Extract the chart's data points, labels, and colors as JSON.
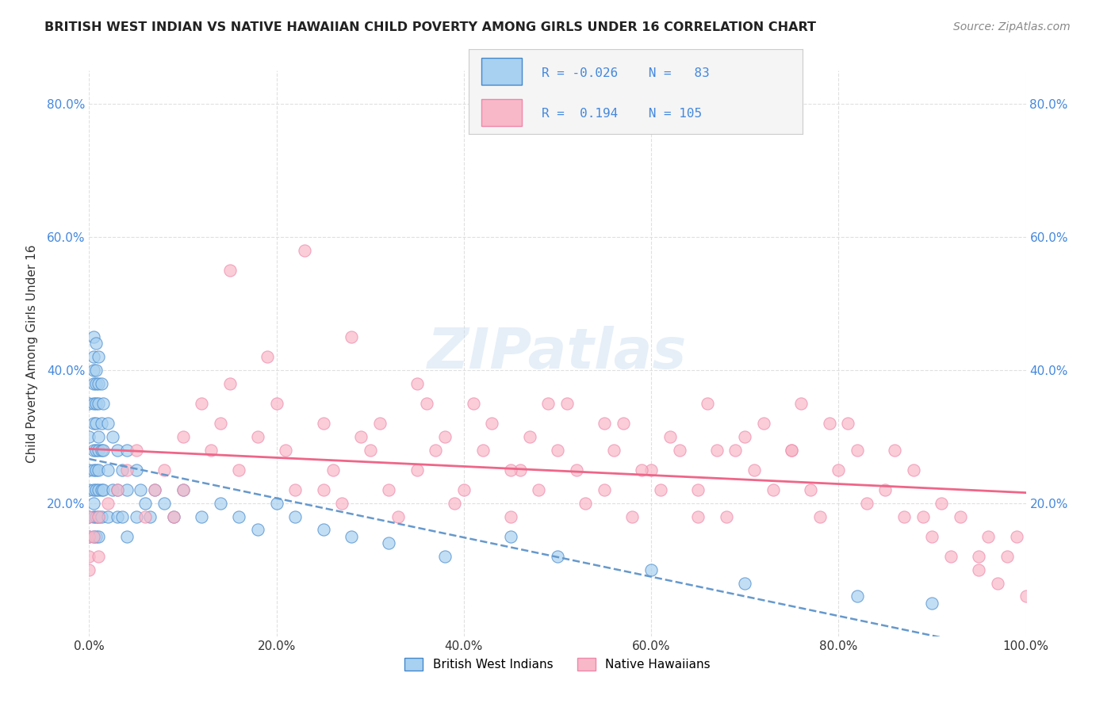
{
  "title": "BRITISH WEST INDIAN VS NATIVE HAWAIIAN CHILD POVERTY AMONG GIRLS UNDER 16 CORRELATION CHART",
  "source": "Source: ZipAtlas.com",
  "ylabel": "Child Poverty Among Girls Under 16",
  "xlabel": "",
  "xlim": [
    0.0,
    1.0
  ],
  "ylim": [
    0.0,
    0.85
  ],
  "x_tick_labels": [
    "0.0%",
    "20.0%",
    "40.0%",
    "60.0%",
    "80.0%",
    "100.0%"
  ],
  "x_tick_vals": [
    0.0,
    0.2,
    0.4,
    0.6,
    0.8,
    1.0
  ],
  "y_tick_labels": [
    "20.0%",
    "40.0%",
    "60.0%",
    "80.0%"
  ],
  "y_tick_vals": [
    0.2,
    0.4,
    0.6,
    0.8
  ],
  "legend_r1": "R = -0.026",
  "legend_n1": "N =  83",
  "legend_r2": "R =  0.194",
  "legend_n2": "N = 105",
  "color_blue": "#a8d0f0",
  "color_pink": "#f8b8c8",
  "color_blue_dark": "#4488cc",
  "color_pink_dark": "#ee88aa",
  "trend_blue": "#6699cc",
  "trend_pink": "#ee6688",
  "background": "#ffffff",
  "grid_color": "#dddddd",
  "watermark": "ZIPatlas",
  "british_x": [
    0.0,
    0.0,
    0.0,
    0.0,
    0.0,
    0.0,
    0.005,
    0.005,
    0.005,
    0.005,
    0.005,
    0.005,
    0.005,
    0.005,
    0.005,
    0.005,
    0.005,
    0.005,
    0.007,
    0.007,
    0.007,
    0.007,
    0.007,
    0.007,
    0.007,
    0.007,
    0.007,
    0.007,
    0.01,
    0.01,
    0.01,
    0.01,
    0.01,
    0.01,
    0.01,
    0.01,
    0.01,
    0.013,
    0.013,
    0.013,
    0.013,
    0.013,
    0.015,
    0.015,
    0.015,
    0.02,
    0.02,
    0.02,
    0.025,
    0.025,
    0.03,
    0.03,
    0.03,
    0.035,
    0.035,
    0.04,
    0.04,
    0.04,
    0.05,
    0.05,
    0.055,
    0.06,
    0.065,
    0.07,
    0.08,
    0.09,
    0.1,
    0.12,
    0.14,
    0.16,
    0.18,
    0.2,
    0.22,
    0.25,
    0.28,
    0.32,
    0.38,
    0.45,
    0.5,
    0.6,
    0.7,
    0.82,
    0.9
  ],
  "british_y": [
    0.35,
    0.3,
    0.25,
    0.22,
    0.18,
    0.15,
    0.45,
    0.42,
    0.4,
    0.38,
    0.35,
    0.32,
    0.28,
    0.25,
    0.22,
    0.2,
    0.18,
    0.15,
    0.44,
    0.4,
    0.38,
    0.35,
    0.32,
    0.28,
    0.25,
    0.22,
    0.18,
    0.15,
    0.42,
    0.38,
    0.35,
    0.3,
    0.28,
    0.25,
    0.22,
    0.18,
    0.15,
    0.38,
    0.32,
    0.28,
    0.22,
    0.18,
    0.35,
    0.28,
    0.22,
    0.32,
    0.25,
    0.18,
    0.3,
    0.22,
    0.28,
    0.22,
    0.18,
    0.25,
    0.18,
    0.28,
    0.22,
    0.15,
    0.25,
    0.18,
    0.22,
    0.2,
    0.18,
    0.22,
    0.2,
    0.18,
    0.22,
    0.18,
    0.2,
    0.18,
    0.16,
    0.2,
    0.18,
    0.16,
    0.15,
    0.14,
    0.12,
    0.15,
    0.12,
    0.1,
    0.08,
    0.06,
    0.05
  ],
  "hawaiian_x": [
    0.0,
    0.0,
    0.0,
    0.0,
    0.005,
    0.01,
    0.01,
    0.02,
    0.03,
    0.04,
    0.05,
    0.06,
    0.07,
    0.08,
    0.09,
    0.1,
    0.1,
    0.12,
    0.13,
    0.14,
    0.15,
    0.16,
    0.18,
    0.2,
    0.21,
    0.22,
    0.23,
    0.25,
    0.26,
    0.27,
    0.28,
    0.3,
    0.31,
    0.32,
    0.33,
    0.35,
    0.36,
    0.37,
    0.38,
    0.4,
    0.41,
    0.42,
    0.43,
    0.45,
    0.46,
    0.47,
    0.48,
    0.5,
    0.51,
    0.52,
    0.53,
    0.55,
    0.56,
    0.57,
    0.58,
    0.6,
    0.61,
    0.62,
    0.63,
    0.65,
    0.66,
    0.67,
    0.68,
    0.7,
    0.71,
    0.72,
    0.73,
    0.75,
    0.76,
    0.77,
    0.78,
    0.8,
    0.81,
    0.82,
    0.83,
    0.85,
    0.86,
    0.87,
    0.88,
    0.9,
    0.91,
    0.92,
    0.93,
    0.95,
    0.96,
    0.97,
    0.98,
    1.0,
    0.19,
    0.29,
    0.39,
    0.49,
    0.59,
    0.69,
    0.79,
    0.89,
    0.99,
    0.15,
    0.35,
    0.55,
    0.75,
    0.95,
    0.25,
    0.45,
    0.65
  ],
  "hawaiian_y": [
    0.18,
    0.15,
    0.12,
    0.1,
    0.15,
    0.18,
    0.12,
    0.2,
    0.22,
    0.25,
    0.28,
    0.18,
    0.22,
    0.25,
    0.18,
    0.3,
    0.22,
    0.35,
    0.28,
    0.32,
    0.38,
    0.25,
    0.3,
    0.35,
    0.28,
    0.22,
    0.58,
    0.32,
    0.25,
    0.2,
    0.45,
    0.28,
    0.32,
    0.22,
    0.18,
    0.25,
    0.35,
    0.28,
    0.3,
    0.22,
    0.35,
    0.28,
    0.32,
    0.18,
    0.25,
    0.3,
    0.22,
    0.28,
    0.35,
    0.25,
    0.2,
    0.22,
    0.28,
    0.32,
    0.18,
    0.25,
    0.22,
    0.3,
    0.28,
    0.22,
    0.35,
    0.28,
    0.18,
    0.3,
    0.25,
    0.32,
    0.22,
    0.28,
    0.35,
    0.22,
    0.18,
    0.25,
    0.32,
    0.28,
    0.2,
    0.22,
    0.28,
    0.18,
    0.25,
    0.15,
    0.2,
    0.12,
    0.18,
    0.1,
    0.15,
    0.08,
    0.12,
    0.06,
    0.42,
    0.3,
    0.2,
    0.35,
    0.25,
    0.28,
    0.32,
    0.18,
    0.15,
    0.55,
    0.38,
    0.32,
    0.28,
    0.12,
    0.22,
    0.25,
    0.18
  ]
}
